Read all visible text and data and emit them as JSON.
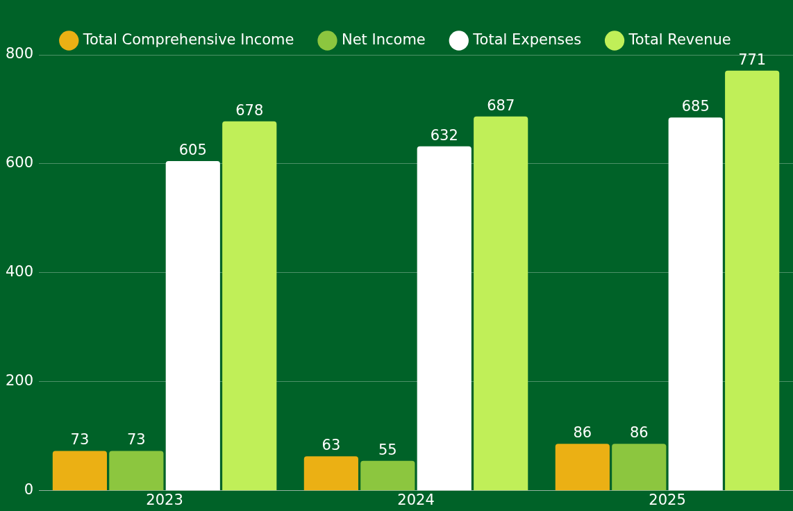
{
  "chart_data": {
    "type": "bar",
    "categories": [
      "2023",
      "2024",
      "2025"
    ],
    "series": [
      {
        "name": "Total Comprehensive Income",
        "color": "#ebb014",
        "values": [
          73,
          63,
          86
        ]
      },
      {
        "name": "Net Income",
        "color": "#8cc63f",
        "values": [
          73,
          55,
          86
        ]
      },
      {
        "name": "Total Expenses",
        "color": "#ffffff",
        "values": [
          605,
          632,
          685
        ]
      },
      {
        "name": "Total Revenue",
        "color": "#c0ef58",
        "values": [
          678,
          687,
          771
        ]
      }
    ],
    "ylim": [
      0,
      800
    ],
    "yticks": [
      0,
      200,
      400,
      600,
      800
    ],
    "grid": "y",
    "legend": "top",
    "data_labels": true
  }
}
